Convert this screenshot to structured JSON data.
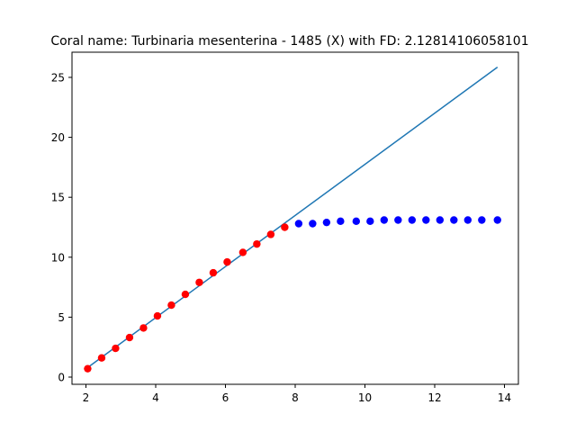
{
  "chart_data": {
    "type": "scatter",
    "title": "Coral name: Turbinaria mesenterina - 1485 (X) with FD: 2.12814106058101",
    "xlabel": "",
    "ylabel": "",
    "xlim": [
      1.6,
      14.4
    ],
    "ylim": [
      -0.6,
      27.1
    ],
    "xticks": [
      2,
      4,
      6,
      8,
      10,
      12,
      14
    ],
    "yticks": [
      0,
      5,
      10,
      15,
      20,
      25
    ],
    "grid": false,
    "legend": "none",
    "series": [
      {
        "type": "scatter",
        "color": "#ff0000",
        "x": [
          2.05,
          2.45,
          2.85,
          3.25,
          3.65,
          4.05,
          4.45,
          4.85,
          5.25,
          5.65,
          6.05,
          6.5,
          6.9,
          7.3,
          7.7
        ],
        "y": [
          0.7,
          1.6,
          2.4,
          3.3,
          4.1,
          5.1,
          6.0,
          6.9,
          7.9,
          8.7,
          9.6,
          10.4,
          11.1,
          11.9,
          12.5
        ]
      },
      {
        "type": "scatter",
        "color": "#0000ff",
        "x": [
          8.1,
          8.5,
          8.9,
          9.3,
          9.75,
          10.15,
          10.55,
          10.95,
          11.35,
          11.75,
          12.15,
          12.55,
          12.95,
          13.35,
          13.8
        ],
        "y": [
          12.8,
          12.8,
          12.9,
          13.0,
          13.0,
          13.0,
          13.1,
          13.1,
          13.1,
          13.1,
          13.1,
          13.1,
          13.1,
          13.1,
          13.1
        ]
      },
      {
        "type": "line",
        "color": "#1f77b4",
        "x": [
          2.05,
          13.8
        ],
        "y": [
          0.8,
          25.85
        ]
      }
    ]
  }
}
